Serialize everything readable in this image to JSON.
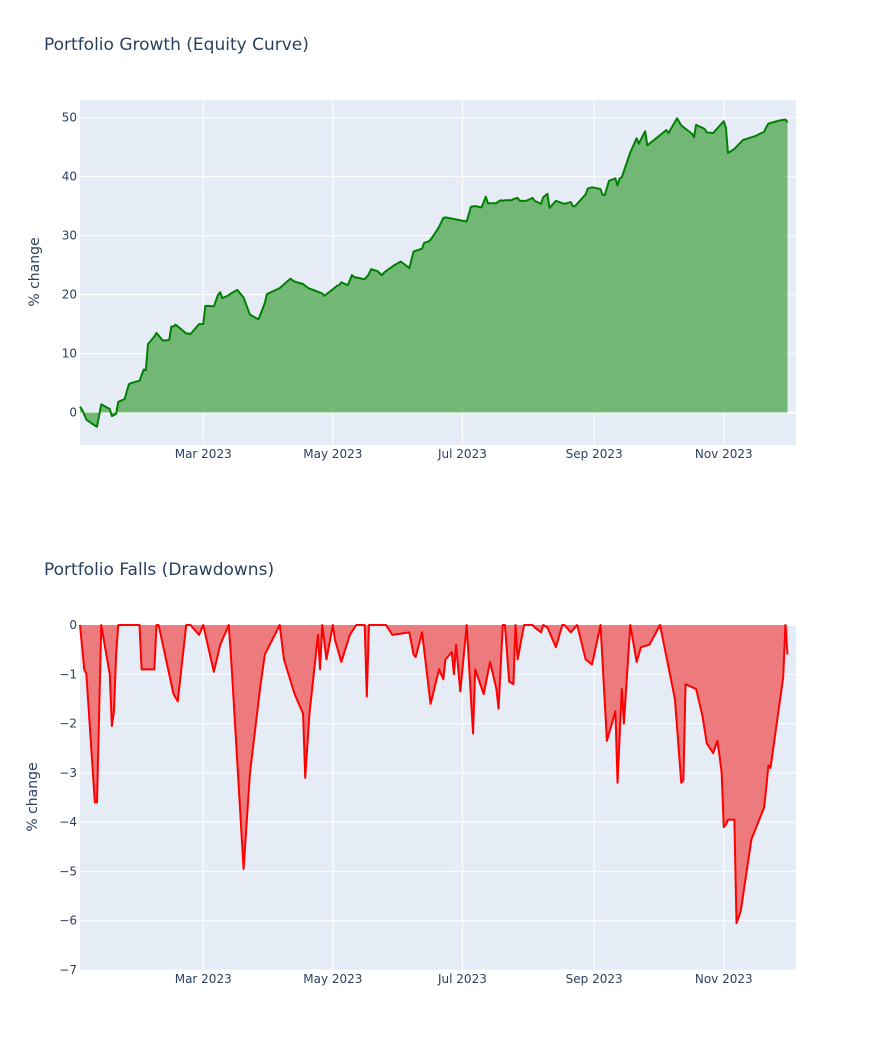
{
  "chart_data": [
    {
      "type": "area",
      "title": "Portfolio Growth (Equity Curve)",
      "xlabel": "",
      "ylabel": "% change",
      "xlim": [
        "2023-01-02",
        "2023-12-05"
      ],
      "ylim": [
        -5.5,
        53
      ],
      "x_ticks": [
        "2023-03-01",
        "2023-05-01",
        "2023-07-01",
        "2023-09-01",
        "2023-11-01"
      ],
      "x_tick_labels": [
        "Mar 2023",
        "May 2023",
        "Jul 2023",
        "Sep 2023",
        "Nov 2023"
      ],
      "y_ticks": [
        0,
        10,
        20,
        30,
        40,
        50
      ],
      "y_tick_labels": [
        "0",
        "10",
        "20",
        "30",
        "40",
        "50"
      ],
      "grid": true,
      "line_color": "#008000",
      "fill_color": "#4ca64c",
      "series": [
        {
          "x": [
            "2023-01-02",
            "2023-01-03",
            "2023-01-05",
            "2023-01-09",
            "2023-01-10",
            "2023-01-12",
            "2023-01-16",
            "2023-01-17",
            "2023-01-19",
            "2023-01-20",
            "2023-01-23",
            "2023-01-25",
            "2023-01-26",
            "2023-01-30",
            "2023-02-01",
            "2023-02-02",
            "2023-02-03",
            "2023-02-06",
            "2023-02-07",
            "2023-02-10",
            "2023-02-13",
            "2023-02-14",
            "2023-02-15",
            "2023-02-16",
            "2023-02-21",
            "2023-02-22",
            "2023-02-23",
            "2023-02-27",
            "2023-03-01",
            "2023-03-02",
            "2023-03-03",
            "2023-03-06",
            "2023-03-08",
            "2023-03-09",
            "2023-03-10",
            "2023-03-13",
            "2023-03-14",
            "2023-03-17",
            "2023-03-20",
            "2023-03-23",
            "2023-03-27",
            "2023-03-30",
            "2023-03-31",
            "2023-04-06",
            "2023-04-11",
            "2023-04-13",
            "2023-04-17",
            "2023-04-18",
            "2023-04-20",
            "2023-04-21",
            "2023-04-26",
            "2023-04-27",
            "2023-05-01",
            "2023-05-03",
            "2023-05-04",
            "2023-05-05",
            "2023-05-08",
            "2023-05-09",
            "2023-05-10",
            "2023-05-11",
            "2023-05-12",
            "2023-05-16",
            "2023-05-18",
            "2023-05-19",
            "2023-05-22",
            "2023-05-24",
            "2023-05-26",
            "2023-05-30",
            "2023-06-01",
            "2023-06-02",
            "2023-06-06",
            "2023-06-08",
            "2023-06-12",
            "2023-06-13",
            "2023-06-15",
            "2023-06-16",
            "2023-06-19",
            "2023-06-20",
            "2023-06-22",
            "2023-06-23",
            "2023-07-03",
            "2023-07-05",
            "2023-07-07",
            "2023-07-10",
            "2023-07-12",
            "2023-07-13",
            "2023-07-17",
            "2023-07-18",
            "2023-07-19",
            "2023-07-20",
            "2023-07-21",
            "2023-07-24",
            "2023-07-25",
            "2023-07-27",
            "2023-07-28",
            "2023-07-31",
            "2023-08-03",
            "2023-08-04",
            "2023-08-07",
            "2023-08-08",
            "2023-08-10",
            "2023-08-11",
            "2023-08-14",
            "2023-08-17",
            "2023-08-18",
            "2023-08-21",
            "2023-08-22",
            "2023-08-23",
            "2023-08-28",
            "2023-08-29",
            "2023-08-31",
            "2023-09-04",
            "2023-09-05",
            "2023-09-06",
            "2023-09-08",
            "2023-09-11",
            "2023-09-12",
            "2023-09-13",
            "2023-09-14",
            "2023-09-18",
            "2023-09-21",
            "2023-09-22",
            "2023-09-25",
            "2023-09-26",
            "2023-10-05",
            "2023-10-06",
            "2023-10-10",
            "2023-10-12",
            "2023-10-13",
            "2023-10-17",
            "2023-10-18",
            "2023-10-19",
            "2023-10-20",
            "2023-10-23",
            "2023-10-24",
            "2023-10-27",
            "2023-11-01",
            "2023-11-02",
            "2023-11-03",
            "2023-11-06",
            "2023-11-10",
            "2023-11-16",
            "2023-11-17",
            "2023-11-20",
            "2023-11-21",
            "2023-11-22",
            "2023-11-27",
            "2023-11-30",
            "2023-12-01"
          ],
          "y": [
            1.0,
            0.5,
            -1.2,
            -2.2,
            -2.4,
            1.4,
            0.6,
            -0.6,
            -0.2,
            1.8,
            2.3,
            4.8,
            5.0,
            5.4,
            7.3,
            7.2,
            11.6,
            12.9,
            13.5,
            12.2,
            12.3,
            14.6,
            14.6,
            14.9,
            13.4,
            13.4,
            13.3,
            15.0,
            15.0,
            18.1,
            18.1,
            18.0,
            20.0,
            20.4,
            19.4,
            19.9,
            20.2,
            20.8,
            19.5,
            16.6,
            15.8,
            18.6,
            20.1,
            21.1,
            22.7,
            22.2,
            21.8,
            21.5,
            21.0,
            20.9,
            20.2,
            19.8,
            20.9,
            21.5,
            21.6,
            22.1,
            21.6,
            22.4,
            23.3,
            23.0,
            22.9,
            22.6,
            23.5,
            24.3,
            24.0,
            23.3,
            24.0,
            25.0,
            25.4,
            25.6,
            24.5,
            27.3,
            27.8,
            28.8,
            29.0,
            29.3,
            30.9,
            31.5,
            33.0,
            33.1,
            32.4,
            34.9,
            35.0,
            34.8,
            36.6,
            35.5,
            35.5,
            35.8,
            36.0,
            35.9,
            36.0,
            36.0,
            36.2,
            36.4,
            35.9,
            35.9,
            36.4,
            35.9,
            35.4,
            36.5,
            37.1,
            34.7,
            35.9,
            35.5,
            35.4,
            35.7,
            35.0,
            35.0,
            37.0,
            38.0,
            38.2,
            37.9,
            36.9,
            36.9,
            39.3,
            39.7,
            38.5,
            39.7,
            39.9,
            44.1,
            46.5,
            45.6,
            47.7,
            45.3,
            47.9,
            47.4,
            49.9,
            48.7,
            48.4,
            47.3,
            46.7,
            48.8,
            48.6,
            48.1,
            47.5,
            47.4,
            49.4,
            48.3,
            44.0,
            44.7,
            46.2,
            46.9,
            47.1,
            47.6,
            48.4,
            49.0,
            49.5,
            49.7,
            49.2
          ]
        }
      ]
    },
    {
      "type": "area",
      "title": "Portfolio Falls (Drawdowns)",
      "xlabel": "",
      "ylabel": "% change",
      "xlim": [
        "2023-01-02",
        "2023-12-05"
      ],
      "ylim": [
        -7,
        0
      ],
      "x_ticks": [
        "2023-03-01",
        "2023-05-01",
        "2023-07-01",
        "2023-09-01",
        "2023-11-01"
      ],
      "x_tick_labels": [
        "Mar 2023",
        "May 2023",
        "Jul 2023",
        "Sep 2023",
        "Nov 2023"
      ],
      "y_ticks": [
        0,
        -1,
        -2,
        -3,
        -4,
        -5,
        -6,
        -7
      ],
      "y_tick_labels": [
        "0",
        "−1",
        "−2",
        "−3",
        "−4",
        "−5",
        "−6",
        "−7"
      ],
      "grid": true,
      "line_color": "#ff0000",
      "fill_color": "#ef5555",
      "series": [
        {
          "x": [
            "2023-01-02",
            "2023-01-04",
            "2023-01-05",
            "2023-01-09",
            "2023-01-10",
            "2023-01-12",
            "2023-01-16",
            "2023-01-17",
            "2023-01-18",
            "2023-01-19",
            "2023-01-20",
            "2023-01-30",
            "2023-01-31",
            "2023-02-06",
            "2023-02-07",
            "2023-02-08",
            "2023-02-14",
            "2023-02-15",
            "2023-02-17",
            "2023-02-21",
            "2023-02-23",
            "2023-02-27",
            "2023-03-01",
            "2023-03-06",
            "2023-03-09",
            "2023-03-13",
            "2023-03-14",
            "2023-03-15",
            "2023-03-20",
            "2023-03-23",
            "2023-03-28",
            "2023-03-30",
            "2023-04-06",
            "2023-04-08",
            "2023-04-13",
            "2023-04-17",
            "2023-04-18",
            "2023-04-20",
            "2023-04-24",
            "2023-04-25",
            "2023-04-26",
            "2023-04-28",
            "2023-05-01",
            "2023-05-02",
            "2023-05-05",
            "2023-05-09",
            "2023-05-12",
            "2023-05-16",
            "2023-05-17",
            "2023-05-18",
            "2023-05-23",
            "2023-05-25",
            "2023-05-26",
            "2023-05-29",
            "2023-06-06",
            "2023-06-08",
            "2023-06-09",
            "2023-06-12",
            "2023-06-16",
            "2023-06-20",
            "2023-06-22",
            "2023-06-23",
            "2023-06-26",
            "2023-06-27",
            "2023-06-28",
            "2023-06-30",
            "2023-07-03",
            "2023-07-06",
            "2023-07-07",
            "2023-07-11",
            "2023-07-14",
            "2023-07-17",
            "2023-07-18",
            "2023-07-20",
            "2023-07-21",
            "2023-07-23",
            "2023-07-25",
            "2023-07-26",
            "2023-07-27",
            "2023-07-30",
            "2023-08-03",
            "2023-08-04",
            "2023-08-07",
            "2023-08-08",
            "2023-08-10",
            "2023-08-14",
            "2023-08-17",
            "2023-08-18",
            "2023-08-21",
            "2023-08-24",
            "2023-08-28",
            "2023-08-31",
            "2023-09-04",
            "2023-09-07",
            "2023-09-11",
            "2023-09-12",
            "2023-09-14",
            "2023-09-15",
            "2023-09-18",
            "2023-09-21",
            "2023-09-23",
            "2023-09-27",
            "2023-10-02",
            "2023-10-09",
            "2023-10-12",
            "2023-10-13",
            "2023-10-14",
            "2023-10-19",
            "2023-10-22",
            "2023-10-24",
            "2023-10-27",
            "2023-10-29",
            "2023-10-30",
            "2023-10-31",
            "2023-11-01",
            "2023-11-02",
            "2023-11-03",
            "2023-11-06",
            "2023-11-07",
            "2023-11-09",
            "2023-11-14",
            "2023-11-20",
            "2023-11-21",
            "2023-11-22",
            "2023-11-23",
            "2023-11-29",
            "2023-11-30",
            "2023-12-01"
          ],
          "y": [
            0,
            -0.9,
            -1.0,
            -3.6,
            -3.6,
            0,
            -1.0,
            -2.05,
            -1.75,
            -0.6,
            0,
            0,
            -0.9,
            -0.9,
            0,
            0,
            -1.2,
            -1.4,
            -1.55,
            0,
            0,
            -0.2,
            0,
            -0.95,
            -0.4,
            0,
            -0.6,
            -1.3,
            -4.95,
            -3.0,
            -1.2,
            -0.6,
            0,
            -0.7,
            -1.4,
            -1.8,
            -3.1,
            -1.8,
            -0.2,
            -0.9,
            0,
            -0.7,
            0,
            -0.3,
            -0.75,
            -0.2,
            0,
            0,
            -1.45,
            0,
            0,
            0,
            0,
            -0.2,
            -0.15,
            -0.6,
            -0.65,
            -0.15,
            -1.6,
            -0.9,
            -1.1,
            -0.7,
            -0.55,
            -1.0,
            -0.4,
            -1.35,
            0,
            -2.2,
            -0.9,
            -1.4,
            -0.75,
            -1.3,
            -1.7,
            0,
            0,
            -1.15,
            -1.2,
            0,
            -0.7,
            0,
            0,
            -0.05,
            -0.15,
            0,
            -0.05,
            -0.45,
            0,
            0,
            -0.15,
            0,
            -0.7,
            -0.8,
            0,
            -2.35,
            -1.75,
            -3.2,
            -1.3,
            -2.0,
            0,
            -0.75,
            -0.45,
            -0.4,
            0,
            -1.5,
            -3.2,
            -3.15,
            -1.2,
            -1.3,
            -1.85,
            -2.4,
            -2.6,
            -2.35,
            -2.65,
            -3.0,
            -4.1,
            -4.05,
            -3.95,
            -3.95,
            -6.05,
            -5.8,
            -4.35,
            -3.7,
            -3.3,
            -2.85,
            -2.9,
            -1.05,
            0,
            -0.6
          ]
        }
      ]
    }
  ]
}
